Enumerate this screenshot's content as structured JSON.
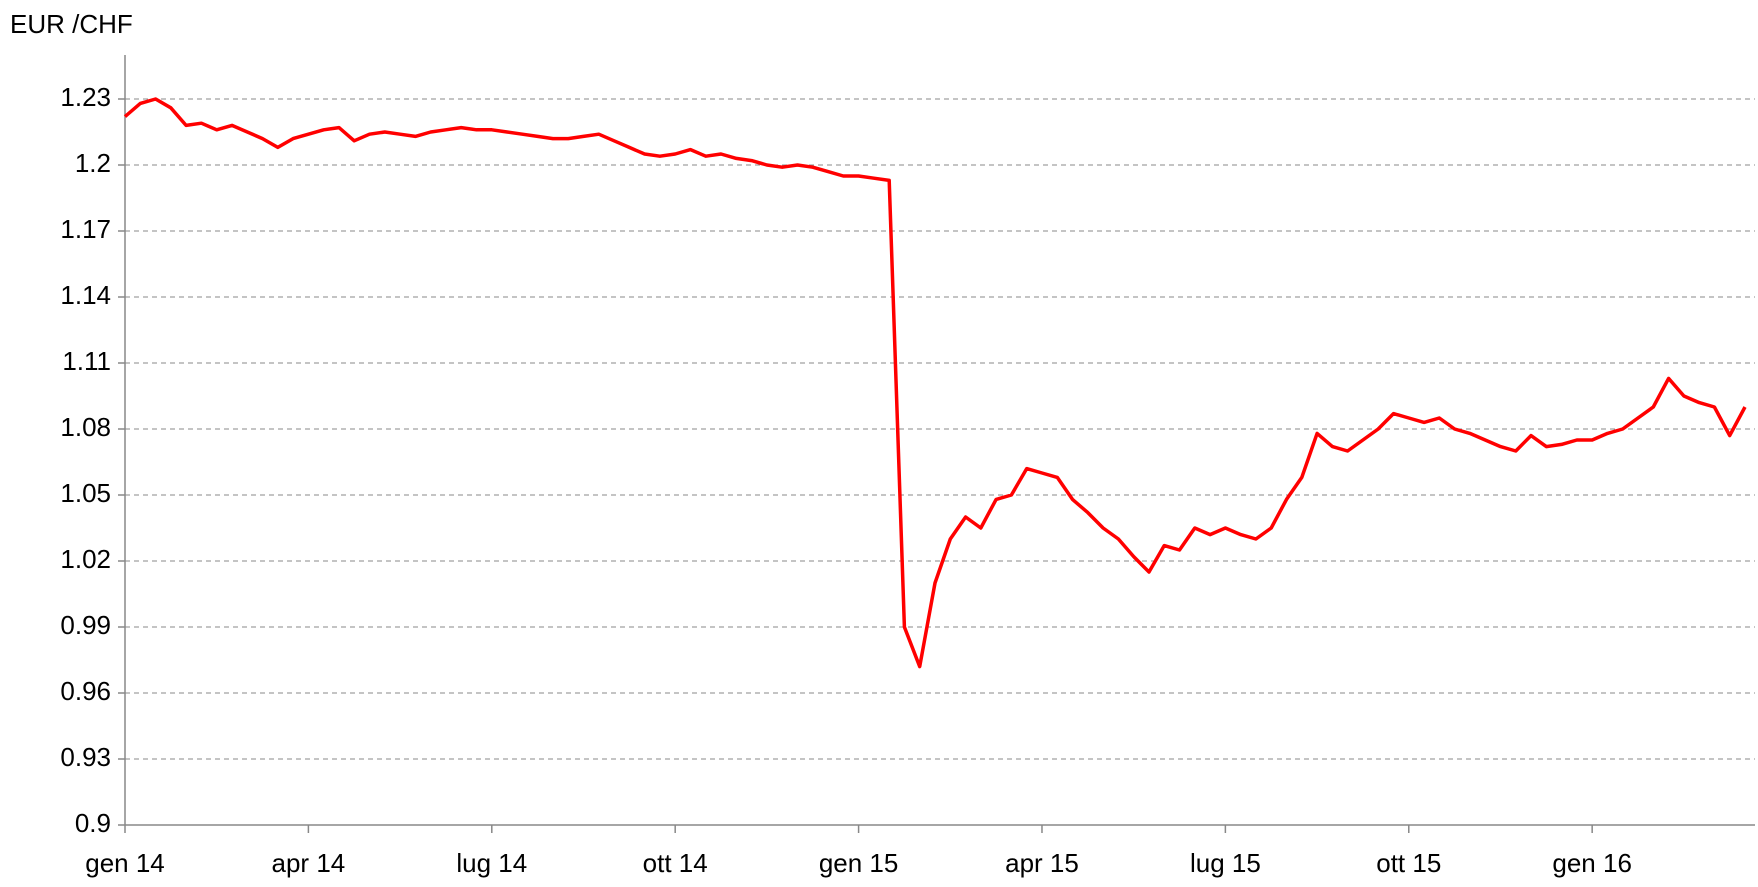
{
  "chart_data": {
    "type": "line",
    "title": "EUR /CHF",
    "categories": [
      "gen 14",
      null,
      null,
      null,
      null,
      null,
      null,
      null,
      null,
      null,
      null,
      null,
      "apr 14",
      null,
      null,
      null,
      null,
      null,
      null,
      null,
      null,
      null,
      null,
      null,
      "lug 14",
      null,
      null,
      null,
      null,
      null,
      null,
      null,
      null,
      null,
      null,
      null,
      "ott 14",
      null,
      null,
      null,
      null,
      null,
      null,
      null,
      null,
      null,
      null,
      null,
      "gen 15",
      null,
      null,
      null,
      null,
      null,
      null,
      null,
      null,
      null,
      null,
      null,
      "apr 15",
      null,
      null,
      null,
      null,
      null,
      null,
      null,
      null,
      null,
      null,
      null,
      "lug 15",
      null,
      null,
      null,
      null,
      null,
      null,
      null,
      null,
      null,
      null,
      null,
      "ott 15",
      null,
      null,
      null,
      null,
      null,
      null,
      null,
      null,
      null,
      null,
      null,
      "gen 16",
      null,
      null,
      null,
      null,
      null,
      null,
      null,
      null,
      null,
      null
    ],
    "values": [
      1.222,
      1.228,
      1.23,
      1.226,
      1.218,
      1.219,
      1.216,
      1.218,
      1.215,
      1.212,
      1.208,
      1.212,
      1.214,
      1.216,
      1.217,
      1.211,
      1.214,
      1.215,
      1.214,
      1.213,
      1.215,
      1.216,
      1.217,
      1.216,
      1.216,
      1.215,
      1.214,
      1.213,
      1.212,
      1.212,
      1.213,
      1.214,
      1.211,
      1.208,
      1.205,
      1.204,
      1.205,
      1.207,
      1.204,
      1.205,
      1.203,
      1.202,
      1.2,
      1.199,
      1.2,
      1.199,
      1.197,
      1.195,
      1.195,
      1.194,
      1.193,
      0.99,
      0.972,
      1.01,
      1.03,
      1.04,
      1.035,
      1.048,
      1.05,
      1.062,
      1.06,
      1.058,
      1.048,
      1.042,
      1.035,
      1.03,
      1.022,
      1.015,
      1.027,
      1.025,
      1.035,
      1.032,
      1.035,
      1.032,
      1.03,
      1.035,
      1.048,
      1.058,
      1.078,
      1.072,
      1.07,
      1.075,
      1.08,
      1.087,
      1.085,
      1.083,
      1.085,
      1.08,
      1.078,
      1.075,
      1.072,
      1.07,
      1.077,
      1.072,
      1.073,
      1.075,
      1.075,
      1.078,
      1.08,
      1.085,
      1.09,
      1.103,
      1.095,
      1.092,
      1.09,
      1.077,
      1.09
    ],
    "color": "#ff0000",
    "ylim": [
      0.9,
      1.25
    ],
    "yticks": [
      0.9,
      0.93,
      0.96,
      0.99,
      1.02,
      1.05,
      1.08,
      1.11,
      1.14,
      1.17,
      1.2,
      1.23
    ],
    "grid": true
  }
}
